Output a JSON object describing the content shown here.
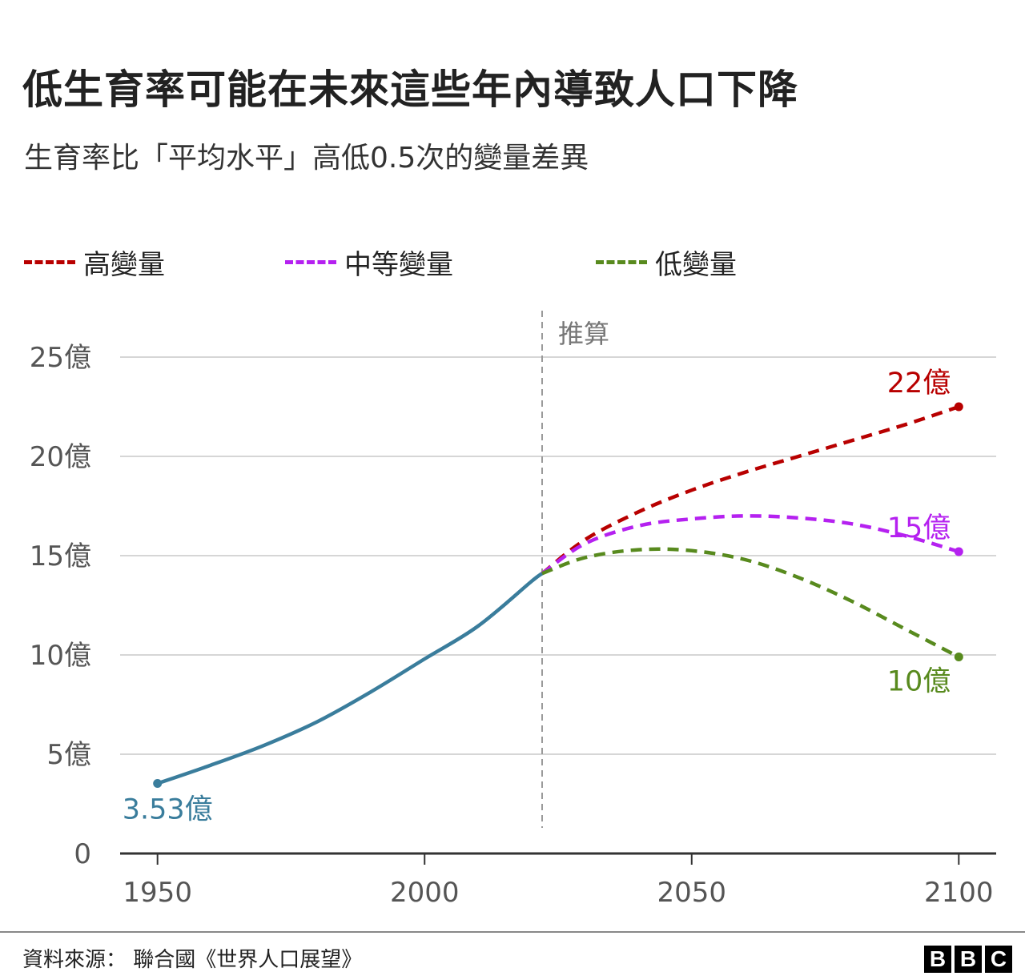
{
  "title": "低生育率可能在未來這些年內導致人口下降",
  "subtitle": "生育率比「平均水平」高低0.5次的變量差異",
  "legend": [
    {
      "label": "高變量",
      "color": "#b80000"
    },
    {
      "label": "中等變量",
      "color": "#b521f0"
    },
    {
      "label": "低變量",
      "color": "#588a1e"
    }
  ],
  "projection_label": "推算",
  "source": "資料來源： 聯合國《世界人口展望》",
  "logo": [
    "B",
    "B",
    "C"
  ],
  "chart_data": {
    "type": "line",
    "title": "低生育率可能在未來這些年內導致人口下降",
    "subtitle": "生育率比「平均水平」高低0.5次的變量差異",
    "xlim": [
      1943,
      2107
    ],
    "ylim": [
      0,
      25
    ],
    "x_ticks": [
      1950,
      2000,
      2050,
      2100
    ],
    "y_ticks": [
      {
        "value": 0,
        "label": "0"
      },
      {
        "value": 5,
        "label": "5億"
      },
      {
        "value": 10,
        "label": "10億"
      },
      {
        "value": 15,
        "label": "15億"
      },
      {
        "value": 20,
        "label": "20億"
      },
      {
        "value": 25,
        "label": "25億"
      }
    ],
    "grid": true,
    "projection_start": 2022,
    "series": [
      {
        "name": "",
        "color": "#3a7d9c",
        "style": "solid",
        "end_label": "3.53億",
        "x": [
          1950,
          1960,
          1970,
          1980,
          1990,
          2000,
          2010,
          2020,
          2022
        ],
        "y": [
          3.53,
          4.45,
          5.45,
          6.65,
          8.15,
          9.8,
          11.45,
          13.7,
          14.1
        ]
      },
      {
        "name": "高變量",
        "color": "#b80000",
        "style": "dashed",
        "end_label": "22億",
        "x": [
          2022,
          2030,
          2040,
          2050,
          2060,
          2070,
          2080,
          2090,
          2100
        ],
        "y": [
          14.1,
          15.8,
          17.2,
          18.3,
          19.2,
          20.0,
          20.8,
          21.6,
          22.5
        ]
      },
      {
        "name": "中等變量",
        "color": "#b521f0",
        "style": "dashed",
        "end_label": "15億",
        "x": [
          2022,
          2030,
          2040,
          2050,
          2060,
          2070,
          2080,
          2090,
          2100
        ],
        "y": [
          14.1,
          15.6,
          16.5,
          16.85,
          17.0,
          16.9,
          16.6,
          16.0,
          15.2
        ]
      },
      {
        "name": "低變量",
        "color": "#588a1e",
        "style": "dashed",
        "end_label": "10億",
        "x": [
          2022,
          2030,
          2040,
          2050,
          2060,
          2070,
          2080,
          2090,
          2100
        ],
        "y": [
          14.1,
          14.9,
          15.3,
          15.25,
          14.8,
          13.9,
          12.7,
          11.3,
          9.9
        ]
      }
    ]
  }
}
